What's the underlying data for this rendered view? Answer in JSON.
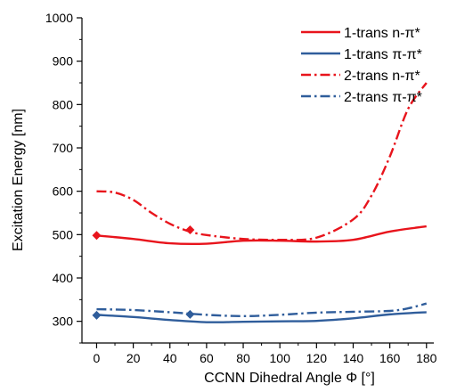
{
  "chart_data": {
    "type": "line",
    "xlabel": "CCNN Dihedral Angle  Φ [°]",
    "ylabel": "Excitation Energy [nm]",
    "xlim": [
      -8,
      184
    ],
    "ylim": [
      250,
      1000
    ],
    "xticks": [
      0,
      20,
      40,
      60,
      80,
      100,
      120,
      140,
      160,
      180
    ],
    "yticks": [
      300,
      400,
      500,
      600,
      700,
      800,
      900,
      1000
    ],
    "grid": false,
    "legend_position": "top-right",
    "series": [
      {
        "name": "1-trans n-π*",
        "color": "#e8141c",
        "dash": "solid",
        "x": [
          0,
          20,
          40,
          60,
          80,
          100,
          120,
          140,
          160,
          180
        ],
        "y": [
          498,
          490,
          480,
          479,
          486,
          486,
          484,
          488,
          507,
          519
        ]
      },
      {
        "name": "1-trans π-π*",
        "color": "#2f5d9b",
        "dash": "solid",
        "x": [
          0,
          20,
          40,
          60,
          80,
          100,
          120,
          140,
          160,
          180
        ],
        "y": [
          315,
          310,
          303,
          298,
          299,
          300,
          301,
          307,
          316,
          321
        ]
      },
      {
        "name": "2-trans n-π*",
        "color": "#e8141c",
        "dash": "dashdot",
        "x": [
          0,
          10,
          20,
          30,
          40,
          50,
          60,
          80,
          100,
          120,
          140,
          150,
          160,
          170,
          180
        ],
        "y": [
          600,
          597,
          580,
          550,
          525,
          508,
          499,
          490,
          488,
          493,
          535,
          590,
          680,
          790,
          850
        ]
      },
      {
        "name": "2-trans π-π*",
        "color": "#2f5d9b",
        "dash": "dashdot",
        "x": [
          0,
          20,
          40,
          60,
          80,
          100,
          120,
          140,
          160,
          170,
          180
        ],
        "y": [
          328,
          326,
          321,
          315,
          312,
          315,
          320,
          322,
          324,
          330,
          341
        ]
      }
    ],
    "markers": [
      {
        "series": "1-trans n-π*",
        "x": 0,
        "y": 498,
        "shape": "diamond",
        "color": "#e8141c"
      },
      {
        "series": "1-trans n-π*",
        "x": 51,
        "y": 511,
        "shape": "diamond",
        "color": "#e8141c"
      },
      {
        "series": "1-trans π-π*",
        "x": 0,
        "y": 314,
        "shape": "diamond",
        "color": "#2f5d9b"
      },
      {
        "series": "1-trans π-π*",
        "x": 51,
        "y": 316,
        "shape": "diamond",
        "color": "#2f5d9b"
      }
    ]
  }
}
